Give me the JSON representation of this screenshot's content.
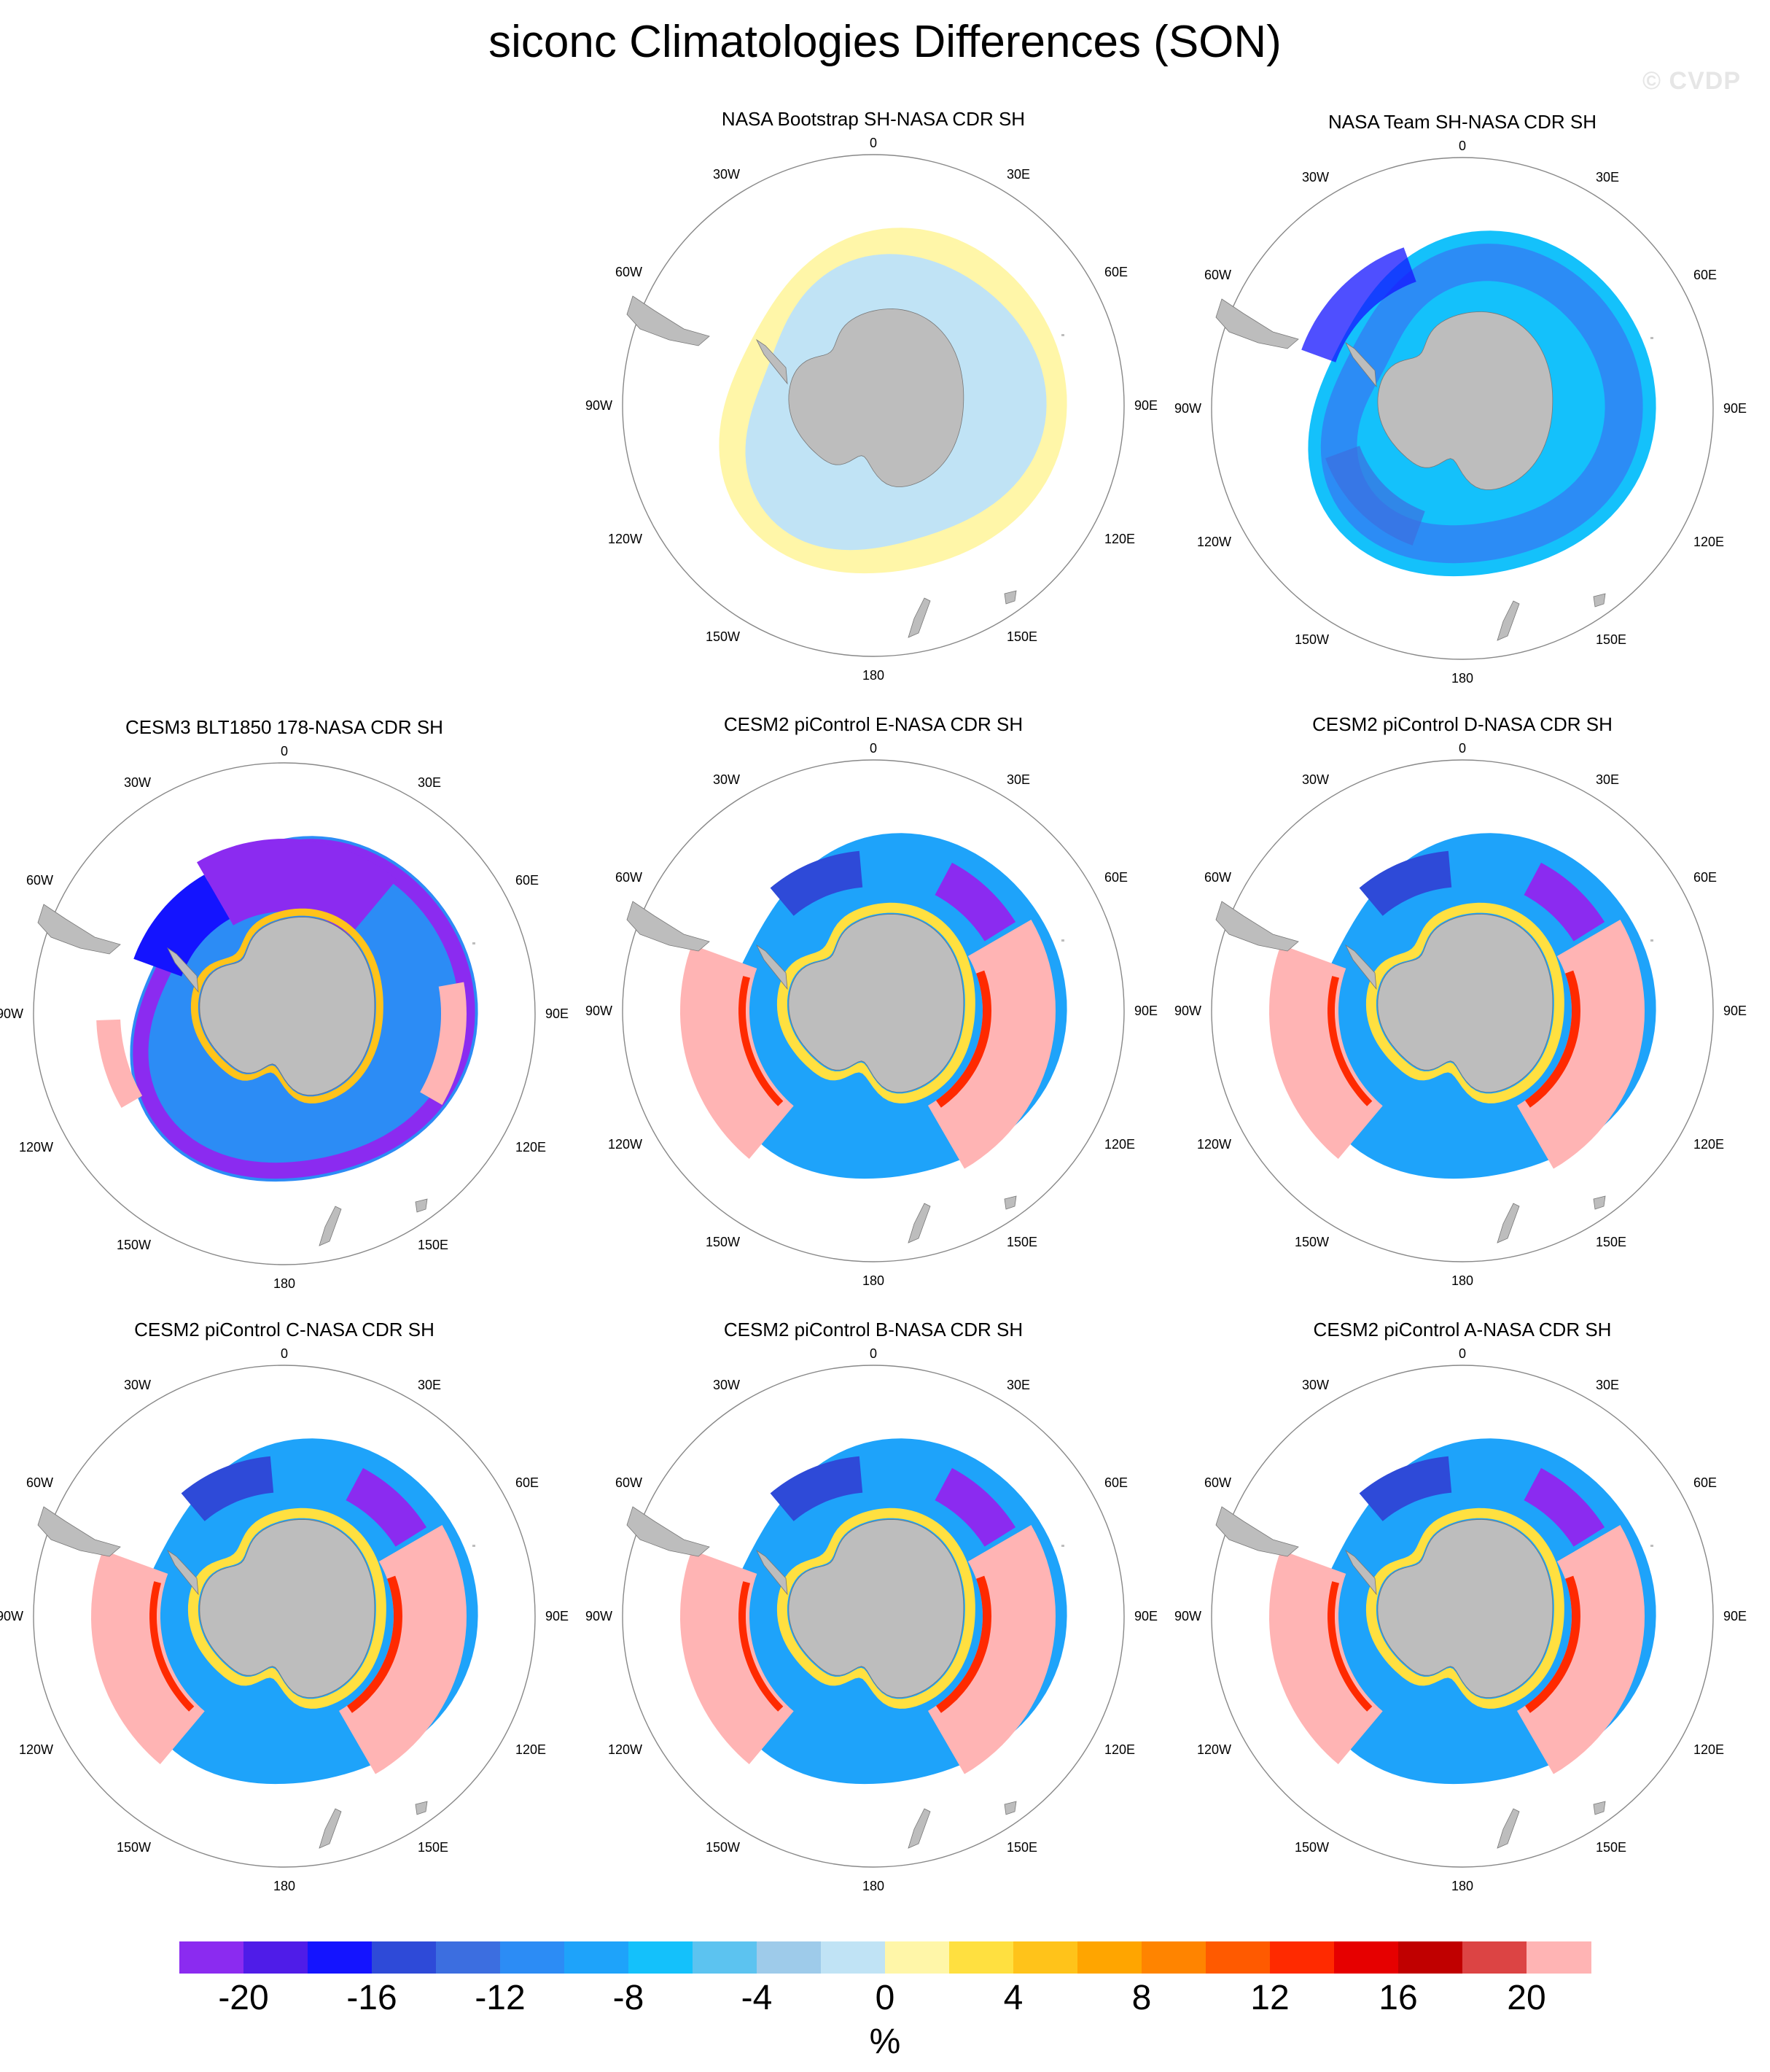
{
  "title": "siconc Climatologies Differences (SON)",
  "watermark": "© CVDP",
  "units": "%",
  "longitude_labels": [
    "0",
    "30E",
    "60E",
    "90E",
    "120E",
    "150E",
    "180",
    "150W",
    "120W",
    "90W",
    "60W",
    "30W"
  ],
  "colors": {
    "land": "#bdbdbd",
    "circle": "#888888",
    "colorbar": [
      "#8b2bf0",
      "#4f1ce8",
      "#1414ff",
      "#2e4ad8",
      "#3c6ee0",
      "#2c8cf5",
      "#1ea3fa",
      "#14c1fb",
      "#5cc3f0",
      "#9ecbea",
      "#c0e3f5",
      "#fff6a8",
      "#ffe040",
      "#ffc31a",
      "#ffa500",
      "#ff8400",
      "#ff5a00",
      "#ff2a00",
      "#e60000",
      "#c00000",
      "#dc4444",
      "#ffb4b4"
    ]
  },
  "chart_data": {
    "type": "heatmap",
    "projection": "south polar stereographic",
    "colorbar_ticks": [
      -20,
      -16,
      -12,
      -8,
      -4,
      0,
      4,
      8,
      12,
      16,
      20
    ],
    "panels": [
      {
        "title": "NASA Bootstrap SH-NASA CDR SH",
        "pattern": "bootstrap"
      },
      {
        "title": "NASA Team SH-NASA CDR SH",
        "pattern": "team"
      },
      {
        "title": "CESM3 BLT1850 178-NASA CDR SH",
        "pattern": "cesm3"
      },
      {
        "title": "CESM2 piControl E-NASA CDR SH",
        "pattern": "cesm2"
      },
      {
        "title": "CESM2 piControl D-NASA CDR SH",
        "pattern": "cesm2"
      },
      {
        "title": "CESM2 piControl C-NASA CDR SH",
        "pattern": "cesm2"
      },
      {
        "title": "CESM2 piControl B-NASA CDR SH",
        "pattern": "cesm2"
      },
      {
        "title": "CESM2 piControl A-NASA CDR SH",
        "pattern": "cesm2"
      }
    ]
  }
}
